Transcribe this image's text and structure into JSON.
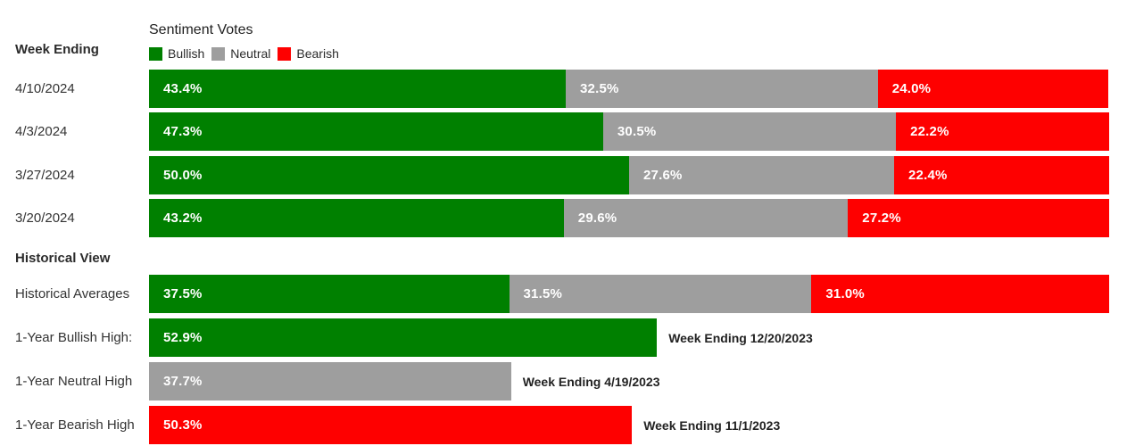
{
  "header": {
    "row_column_label": "Week Ending",
    "title": "Sentiment Votes"
  },
  "colors": {
    "bullish": "#008000",
    "neutral": "#9e9e9e",
    "bearish": "#fe0000",
    "bar_value_text": "#ffffff",
    "label_text": "#333333"
  },
  "chart_data": {
    "type": "bar",
    "subtype": "horizontal-stacked",
    "title": "Sentiment Votes",
    "row_header": "Week Ending",
    "unit": "%",
    "xlim": [
      0,
      100
    ],
    "legend_position": "top",
    "legend": [
      "Bullish",
      "Neutral",
      "Bearish"
    ],
    "categories": [
      "4/10/2024",
      "4/3/2024",
      "3/27/2024",
      "3/20/2024"
    ],
    "series": [
      {
        "name": "Bullish",
        "color": "#008000",
        "values": [
          43.4,
          47.3,
          50.0,
          43.2
        ]
      },
      {
        "name": "Neutral",
        "color": "#9e9e9e",
        "values": [
          32.5,
          30.5,
          27.6,
          29.6
        ]
      },
      {
        "name": "Bearish",
        "color": "#fe0000",
        "values": [
          24.0,
          22.2,
          22.4,
          27.2
        ]
      }
    ],
    "historical": {
      "section_label": "Historical View",
      "averages": {
        "label": "Historical Averages",
        "values": [
          {
            "series": "Bullish",
            "color": "#008000",
            "value": 37.5
          },
          {
            "series": "Neutral",
            "color": "#9e9e9e",
            "value": 31.5
          },
          {
            "series": "Bearish",
            "color": "#fe0000",
            "value": 31.0
          }
        ]
      },
      "highs": [
        {
          "label": "1-Year Bullish High:",
          "series": "Bullish",
          "color": "#008000",
          "value": 52.9,
          "annotation": "Week Ending 12/20/2023"
        },
        {
          "label": "1-Year Neutral High",
          "series": "Neutral",
          "color": "#9e9e9e",
          "value": 37.7,
          "annotation": "Week Ending 4/19/2023"
        },
        {
          "label": "1-Year Bearish High",
          "series": "Bearish",
          "color": "#fe0000",
          "value": 50.3,
          "annotation": "Week Ending 11/1/2023"
        }
      ]
    }
  }
}
